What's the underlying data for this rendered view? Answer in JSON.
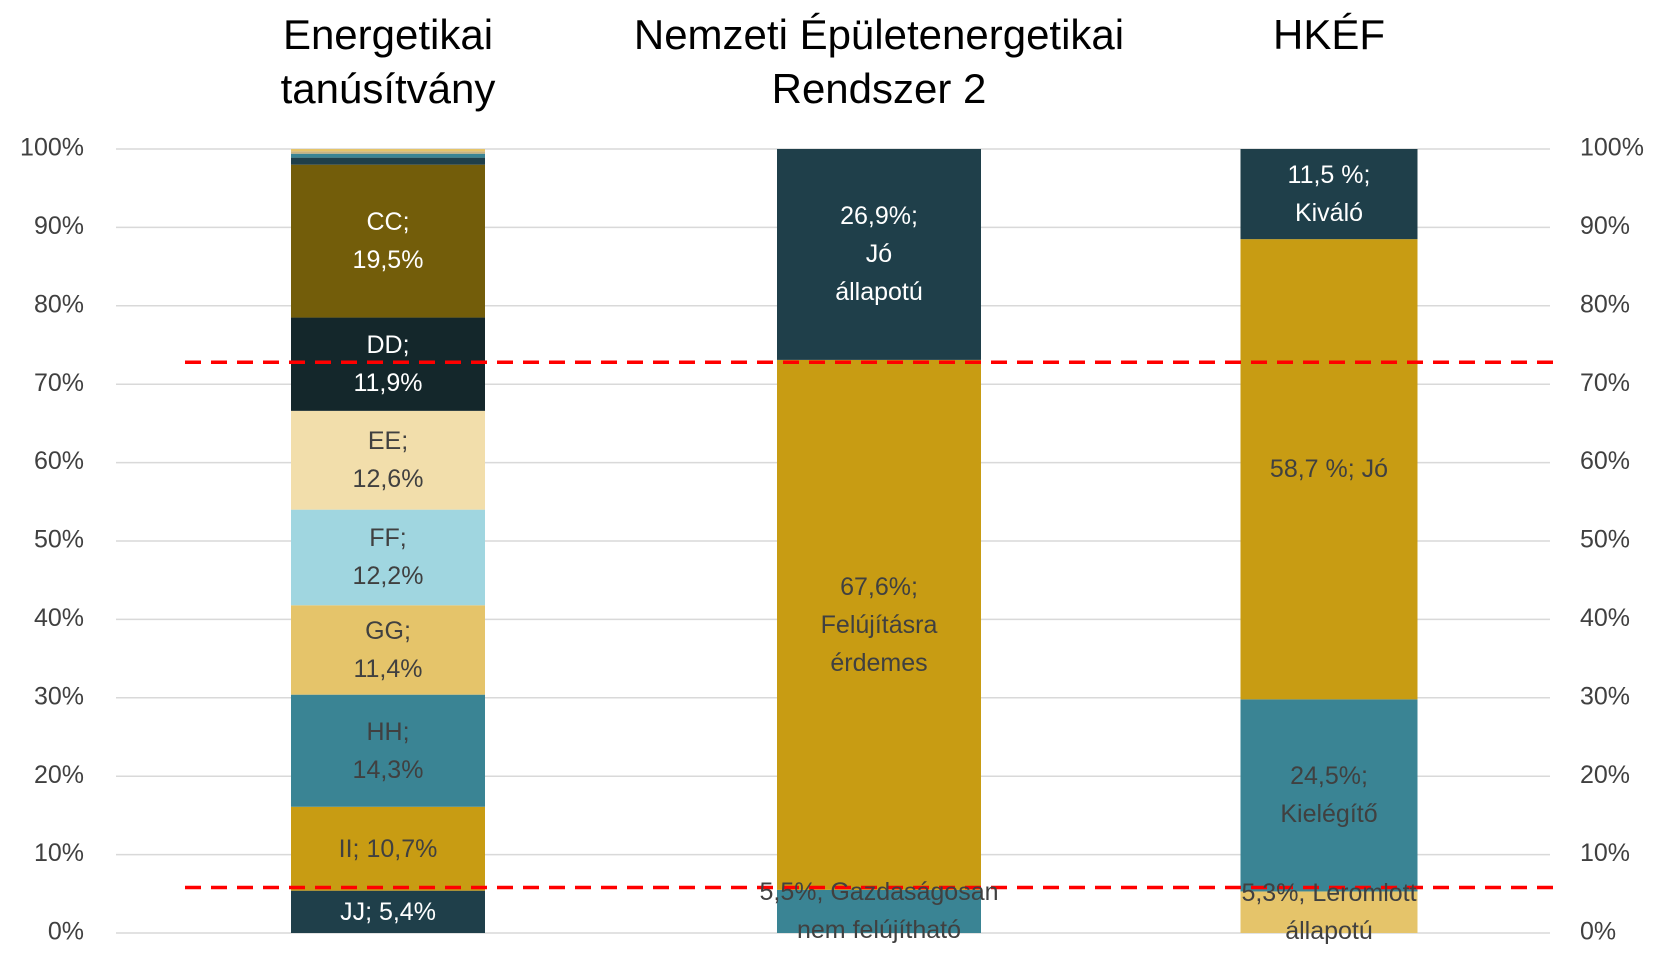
{
  "chart_data": {
    "type": "stacked_bar",
    "bars": [
      {
        "name": "Energetikai tanúsítvány",
        "values": [
          5.4,
          10.7,
          14.3,
          11.4,
          12.2,
          12.6,
          11.9,
          19.5,
          0.9,
          0.5,
          0.3,
          0.3
        ],
        "value_labels": [
          "JJ; 5,4%",
          "II; 10,7%",
          "HH;\n14,3%",
          "GG;\n11,4%",
          "FF;\n12,2%",
          "EE;\n12,6%",
          "DD;\n11,9%",
          "CC;\n19,5%",
          null,
          null,
          null,
          null
        ],
        "colors": [
          "#1f3f4a",
          "#c89c13",
          "#3a8494",
          "#e5c46a",
          "#a0d6e0",
          "#f2deab",
          "#14272b",
          "#735d0a",
          "#1f3f4a",
          "#3a8494",
          "#c8b280",
          "#e5c46a"
        ],
        "label_colors": [
          "#ffffff",
          "#404040",
          "#404040",
          "#404040",
          "#404040",
          "#404040",
          "#ffffff",
          "#ffffff",
          null,
          null,
          null,
          null
        ]
      },
      {
        "name": "Nemzeti Épületenergetikai Rendszer 2",
        "values": [
          5.5,
          67.6,
          26.9
        ],
        "value_labels": [
          "5,5%, Gazdaságosan\nnem felújítható",
          "67,6%;\nFelújításra\nérdemes",
          "26,9%;\nJó\nállapotú"
        ],
        "colors": [
          "#3a8494",
          "#c89c13",
          "#1f3f4a"
        ],
        "label_colors": [
          "#404040",
          "#404040",
          "#ffffff"
        ]
      },
      {
        "name": "HKÉF",
        "values": [
          5.3,
          24.5,
          58.7,
          11.5
        ],
        "value_labels": [
          "5,3%, Leromlott\nállapotú",
          "24,5%;\nKielégítő",
          "58,7 %; Jó",
          "11,5 %;\nKiváló"
        ],
        "colors": [
          "#e5c46a",
          "#3a8494",
          "#c89c13",
          "#1f3f4a"
        ],
        "label_colors": [
          "#404040",
          "#404040",
          "#404040",
          "#ffffff"
        ]
      }
    ],
    "ylim": [
      0,
      100
    ],
    "yticks": [
      {
        "value": 0,
        "label": "0%"
      },
      {
        "value": 10,
        "label": "10%"
      },
      {
        "value": 20,
        "label": "20%"
      },
      {
        "value": 30,
        "label": "30%"
      },
      {
        "value": 40,
        "label": "40%"
      },
      {
        "value": 50,
        "label": "50%"
      },
      {
        "value": 60,
        "label": "60%"
      },
      {
        "value": 70,
        "label": "70%"
      },
      {
        "value": 80,
        "label": "80%"
      },
      {
        "value": 90,
        "label": "90%"
      },
      {
        "value": 100,
        "label": "100%"
      }
    ],
    "y2lim": [
      0,
      100
    ],
    "y2ticks": [
      {
        "value": 0,
        "label": "0%"
      },
      {
        "value": 10,
        "label": "10%"
      },
      {
        "value": 20,
        "label": "20%"
      },
      {
        "value": 30,
        "label": "30%"
      },
      {
        "value": 40,
        "label": "40%"
      },
      {
        "value": 50,
        "label": "50%"
      },
      {
        "value": 60,
        "label": "60%"
      },
      {
        "value": 70,
        "label": "70%"
      },
      {
        "value": 80,
        "label": "80%"
      },
      {
        "value": 90,
        "label": "90%"
      },
      {
        "value": 100,
        "label": "100%"
      }
    ],
    "grid": true,
    "reference_lines": [
      {
        "value": 72.8,
        "color": "#ff0000"
      },
      {
        "value": 5.8,
        "color": "#ff0000"
      }
    ]
  }
}
